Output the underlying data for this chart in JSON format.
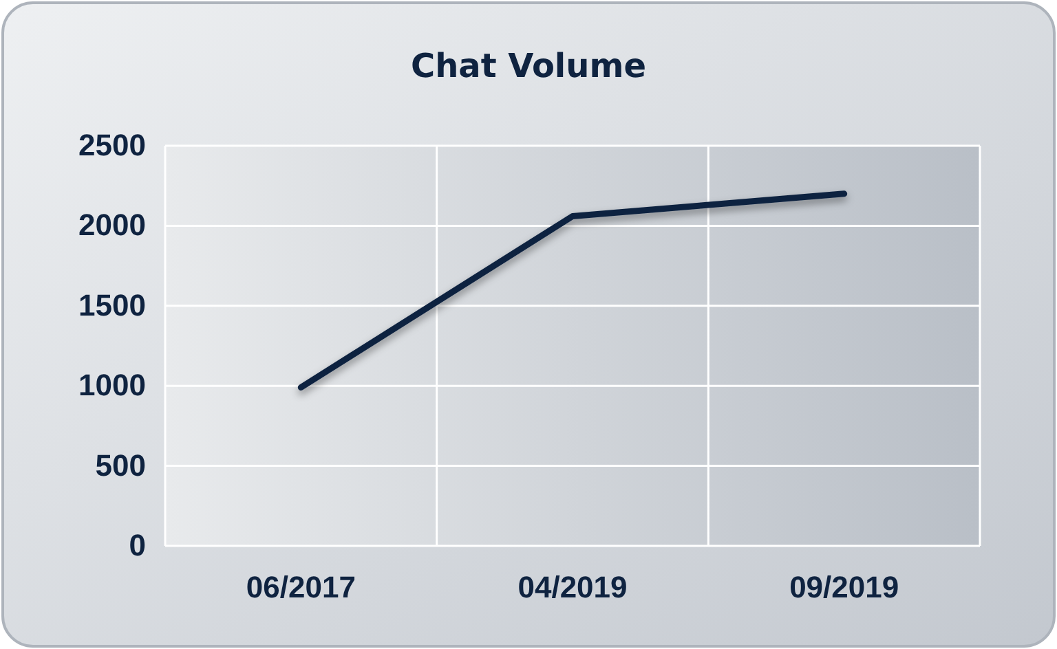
{
  "chart_data": {
    "type": "line",
    "title": "Chat Volume",
    "categories": [
      "06/2017",
      "04/2019",
      "09/2019"
    ],
    "series": [
      {
        "color": "#0f2340",
        "values": [
          990,
          2060,
          2200
        ]
      }
    ],
    "ylim": [
      0,
      2500
    ],
    "yticks": [
      0,
      500,
      1000,
      1500,
      2000,
      2500
    ],
    "grid": true,
    "marker": "none",
    "line_style": "solid"
  }
}
